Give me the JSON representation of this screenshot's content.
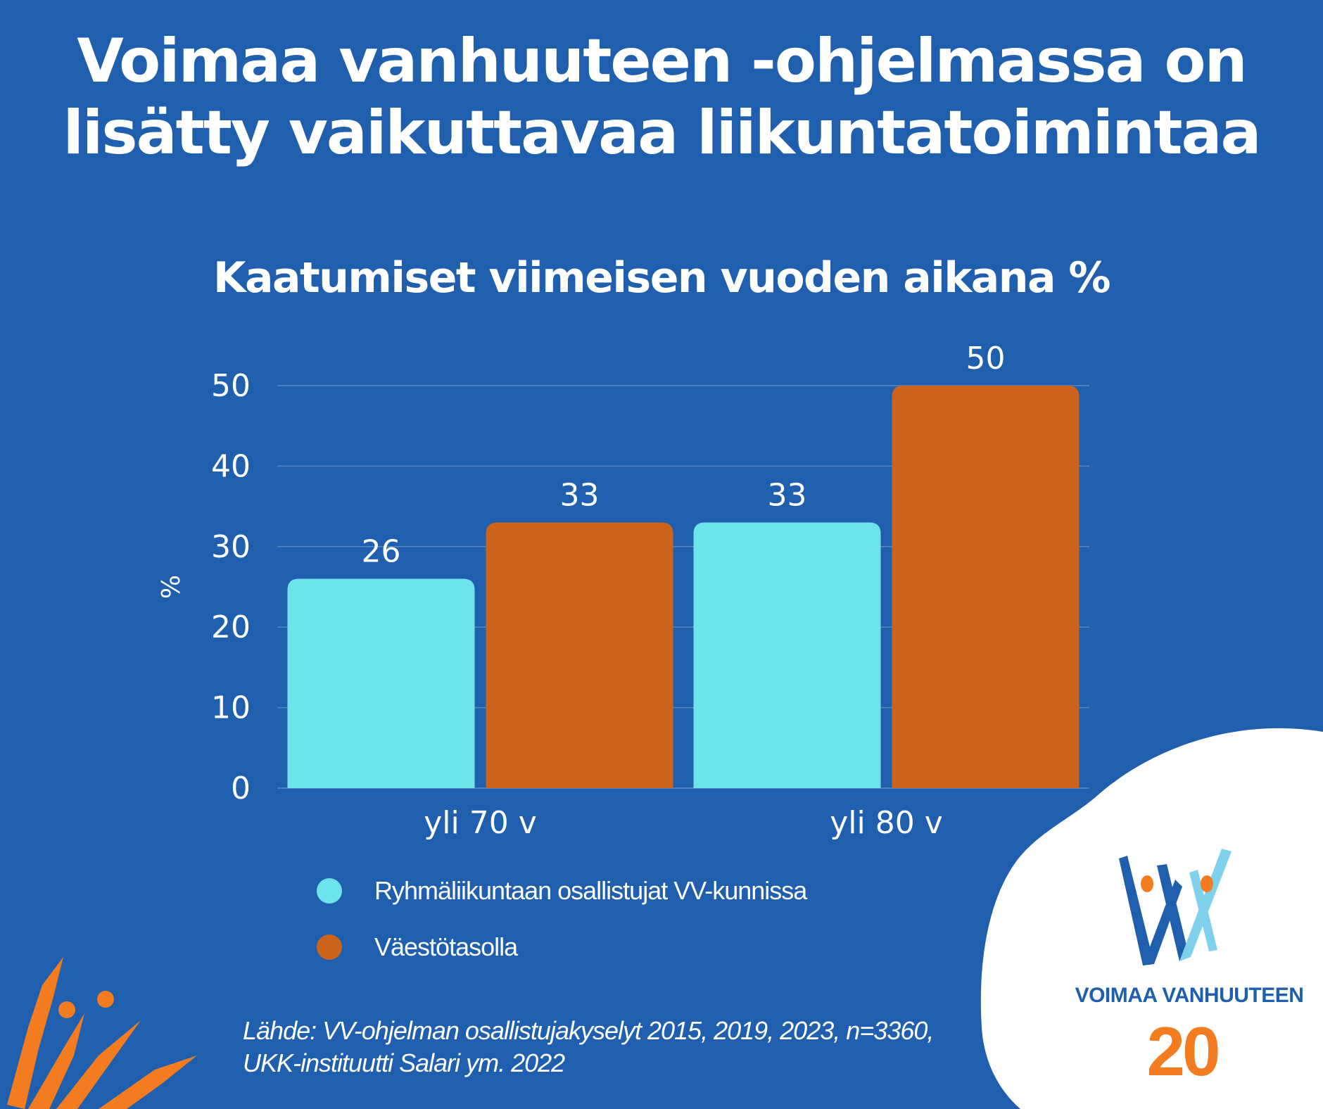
{
  "header": {
    "title_line1": "Voimaa vanhuuteen -ohjelmassa on",
    "title_line2": "lisätty vaikuttavaa liikuntatoimintaa"
  },
  "colors": {
    "background": "#1f5fad",
    "series_1": "#6de4ea",
    "series_2": "#cc631d",
    "accent_orange": "#f47c20",
    "logo_dark_blue": "#1f5fad",
    "logo_light_blue": "#7fd0ea"
  },
  "chart_data": {
    "type": "bar",
    "title": "Kaatumiset viimeisen vuoden aikana %",
    "ylabel": "%",
    "xlabel": "",
    "categories": [
      "yli 70 v",
      "yli 80 v"
    ],
    "series": [
      {
        "name": "Ryhmäliikuntaan osallistujat VV-kunnissa",
        "values": [
          26,
          33
        ]
      },
      {
        "name": "Väestötasolla",
        "values": [
          33,
          50
        ]
      }
    ],
    "ylim": [
      0,
      50
    ],
    "yticks": [
      0,
      10,
      20,
      30,
      40,
      50
    ],
    "grid": true,
    "legend_position": "bottom-left",
    "data_labels": true
  },
  "footer": {
    "source_line1": "Lähde: VV-ohjelman osallistujakyselyt 2015, 2019, 2023, n=3360,",
    "source_line2": "UKK-instituutti Salari ym. 2022"
  },
  "logo": {
    "name": "VOIMAA VANHUUTEEN",
    "anniversary": "20"
  },
  "icons": {
    "logo_mark": "vv-logo-icon",
    "decoration": "orange-figures-icon"
  }
}
